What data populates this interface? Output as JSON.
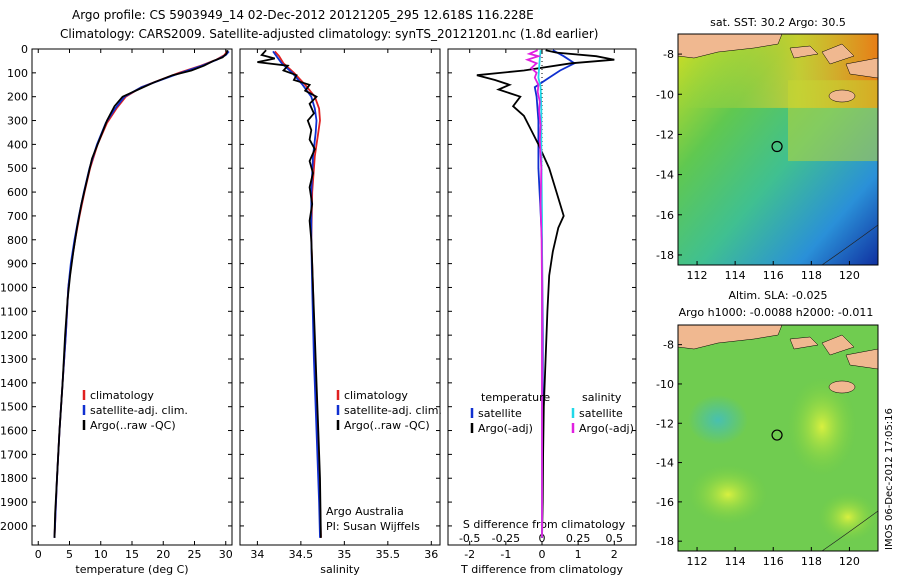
{
  "header": {
    "line1": "Argo profile: CS 5903949_14 02-Dec-2012 20121205_295 12.618S 116.228E",
    "line2": "Climatology: CARS2009. Satellite-adjusted climatology: synTS_20121201.nc (1.8d earlier)"
  },
  "side_label": "IMOS 06-Dec-2012 17:05:16",
  "colors": {
    "clim": "#e02020",
    "sat": "#1030d0",
    "argo": "#000000",
    "sat_s": "#20d8e8",
    "argo_s": "#e020e0"
  },
  "chart_data": [
    {
      "type": "line",
      "name": "temperature-profile",
      "xlabel": "temperature (deg C)",
      "ylabel": "",
      "xlim": [
        -1,
        31
      ],
      "ylim": [
        2080,
        0
      ],
      "xticks": [
        0,
        5,
        10,
        15,
        20,
        25,
        30
      ],
      "yticks": [
        0,
        100,
        200,
        300,
        400,
        500,
        600,
        700,
        800,
        900,
        1000,
        1100,
        1200,
        1300,
        1400,
        1500,
        1600,
        1700,
        1800,
        1900,
        2000
      ],
      "legend": {
        "position": "lower-left",
        "items": [
          "climatology",
          "satellite-adj. clim.",
          "Argo(..raw -QC)"
        ]
      },
      "series": [
        {
          "name": "climatology",
          "color": "clim",
          "points": [
            [
              30.2,
              10
            ],
            [
              29.8,
              25
            ],
            [
              28.5,
              45
            ],
            [
              26,
              70
            ],
            [
              22.5,
              100
            ],
            [
              19.5,
              130
            ],
            [
              16.5,
              160
            ],
            [
              14,
              200
            ],
            [
              12.5,
              250
            ],
            [
              11,
              310
            ],
            [
              9.5,
              400
            ],
            [
              8.3,
              500
            ],
            [
              7.4,
              600
            ],
            [
              6.6,
              700
            ],
            [
              5.9,
              800
            ],
            [
              5.3,
              900
            ],
            [
              4.8,
              1000
            ],
            [
              4.4,
              1200
            ],
            [
              3.9,
              1400
            ],
            [
              3.4,
              1600
            ],
            [
              3.0,
              1800
            ],
            [
              2.6,
              2050
            ]
          ]
        },
        {
          "name": "satellite-adj. clim.",
          "color": "sat",
          "points": [
            [
              30.5,
              10
            ],
            [
              30,
              25
            ],
            [
              28.6,
              45
            ],
            [
              26.2,
              70
            ],
            [
              22.8,
              100
            ],
            [
              19.6,
              130
            ],
            [
              16.5,
              160
            ],
            [
              13.8,
              200
            ],
            [
              12.3,
              250
            ],
            [
              10.8,
              310
            ],
            [
              9.4,
              400
            ],
            [
              8.2,
              500
            ],
            [
              7.3,
              600
            ],
            [
              6.5,
              700
            ],
            [
              5.8,
              800
            ],
            [
              5.2,
              900
            ],
            [
              4.8,
              1000
            ],
            [
              4.4,
              1200
            ],
            [
              3.9,
              1400
            ],
            [
              3.4,
              1600
            ],
            [
              3.0,
              1800
            ],
            [
              2.6,
              2050
            ]
          ]
        },
        {
          "name": "Argo(..raw -QC)",
          "color": "argo",
          "points": [
            [
              30.3,
              5
            ],
            [
              30.1,
              20
            ],
            [
              29.5,
              35
            ],
            [
              28,
              50
            ],
            [
              26.5,
              70
            ],
            [
              24.5,
              90
            ],
            [
              21.5,
              110
            ],
            [
              18.5,
              140
            ],
            [
              16,
              170
            ],
            [
              13.5,
              200
            ],
            [
              12.2,
              240
            ],
            [
              11,
              300
            ],
            [
              9.8,
              380
            ],
            [
              8.6,
              460
            ],
            [
              7.7,
              560
            ],
            [
              6.9,
              650
            ],
            [
              6.2,
              750
            ],
            [
              5.6,
              850
            ],
            [
              5.1,
              950
            ],
            [
              4.7,
              1050
            ],
            [
              4.3,
              1200
            ],
            [
              3.9,
              1400
            ],
            [
              3.4,
              1600
            ],
            [
              3.0,
              1800
            ],
            [
              2.7,
              1950
            ],
            [
              2.6,
              2050
            ]
          ]
        }
      ]
    },
    {
      "type": "line",
      "name": "salinity-profile",
      "xlabel": "salinity",
      "xlim": [
        33.8,
        36.1
      ],
      "ylim": [
        2080,
        0
      ],
      "xticks": [
        34,
        34.5,
        35,
        35.5,
        36
      ],
      "legend": {
        "position": "lower-right",
        "items": [
          "climatology",
          "satellite-adj. clim.",
          "Argo(..raw -QC)"
        ]
      },
      "annotation": [
        "Argo Australia",
        "PI: Susan Wijffels"
      ],
      "series": [
        {
          "name": "climatology",
          "color": "clim",
          "points": [
            [
              34.2,
              10
            ],
            [
              34.25,
              30
            ],
            [
              34.3,
              60
            ],
            [
              34.42,
              100
            ],
            [
              34.55,
              150
            ],
            [
              34.66,
              200
            ],
            [
              34.71,
              250
            ],
            [
              34.72,
              300
            ],
            [
              34.7,
              350
            ],
            [
              34.66,
              450
            ],
            [
              34.63,
              600
            ],
            [
              34.62,
              800
            ],
            [
              34.64,
              1000
            ],
            [
              34.66,
              1300
            ],
            [
              34.69,
              1600
            ],
            [
              34.72,
              1900
            ],
            [
              34.73,
              2050
            ]
          ]
        },
        {
          "name": "satellite-adj. clim.",
          "color": "sat",
          "points": [
            [
              34.18,
              10
            ],
            [
              34.22,
              30
            ],
            [
              34.28,
              60
            ],
            [
              34.4,
              100
            ],
            [
              34.52,
              150
            ],
            [
              34.62,
              200
            ],
            [
              34.66,
              250
            ],
            [
              34.68,
              300
            ],
            [
              34.67,
              350
            ],
            [
              34.64,
              450
            ],
            [
              34.62,
              600
            ],
            [
              34.62,
              800
            ],
            [
              34.63,
              1000
            ],
            [
              34.65,
              1300
            ],
            [
              34.68,
              1600
            ],
            [
              34.71,
              1900
            ],
            [
              34.72,
              2050
            ]
          ]
        },
        {
          "name": "Argo(..raw -QC)",
          "color": "argo",
          "points": [
            [
              34.1,
              5
            ],
            [
              34.05,
              25
            ],
            [
              34.2,
              40
            ],
            [
              34.0,
              55
            ],
            [
              34.35,
              70
            ],
            [
              34.3,
              90
            ],
            [
              34.45,
              110
            ],
            [
              34.42,
              130
            ],
            [
              34.6,
              150
            ],
            [
              34.55,
              175
            ],
            [
              34.68,
              200
            ],
            [
              34.6,
              230
            ],
            [
              34.65,
              270
            ],
            [
              34.58,
              300
            ],
            [
              34.62,
              340
            ],
            [
              34.6,
              380
            ],
            [
              34.66,
              420
            ],
            [
              34.6,
              470
            ],
            [
              34.64,
              520
            ],
            [
              34.6,
              580
            ],
            [
              34.63,
              650
            ],
            [
              34.6,
              720
            ],
            [
              34.62,
              800
            ],
            [
              34.63,
              900
            ],
            [
              34.64,
              1000
            ],
            [
              34.66,
              1200
            ],
            [
              34.68,
              1400
            ],
            [
              34.7,
              1600
            ],
            [
              34.72,
              1800
            ],
            [
              34.73,
              2050
            ]
          ]
        }
      ]
    },
    {
      "type": "line",
      "name": "difference-profile",
      "xlabel": "T difference from climatology",
      "xlabel2": "S difference from climatology",
      "xlim": [
        -2.6,
        2.6
      ],
      "ylim": [
        2080,
        0
      ],
      "xticks": [
        -2,
        -1,
        0,
        1,
        2
      ],
      "xticks2": [
        -0.5,
        -0.25,
        0,
        0.25,
        0.5
      ],
      "xticks2_scale": 4,
      "legend": {
        "position": "lower",
        "left_title": "temperature",
        "right_title": "salinity",
        "items": [
          "satellite",
          "Argo(-adj)",
          "satellite",
          "Argo(-adj)"
        ]
      },
      "series": [
        {
          "name": "T satellite",
          "color": "sat",
          "points": [
            [
              0.3,
              5
            ],
            [
              0.6,
              30
            ],
            [
              0.9,
              60
            ],
            [
              0.5,
              90
            ],
            [
              0.2,
              120
            ],
            [
              -0.2,
              160
            ],
            [
              -0.15,
              200
            ],
            [
              -0.1,
              300
            ],
            [
              -0.1,
              500
            ],
            [
              0.0,
              800
            ],
            [
              0.02,
              1200
            ],
            [
              0.02,
              1600
            ],
            [
              0.0,
              2050
            ]
          ]
        },
        {
          "name": "T Argo(-adj)",
          "color": "argo",
          "points": [
            [
              0.1,
              5
            ],
            [
              0.4,
              15
            ],
            [
              1.5,
              30
            ],
            [
              2.0,
              45
            ],
            [
              0.8,
              60
            ],
            [
              -0.5,
              90
            ],
            [
              -1.8,
              110
            ],
            [
              -1.3,
              130
            ],
            [
              -0.9,
              150
            ],
            [
              -1.2,
              170
            ],
            [
              -0.6,
              200
            ],
            [
              -0.8,
              240
            ],
            [
              -0.5,
              280
            ],
            [
              -0.3,
              340
            ],
            [
              -0.1,
              400
            ],
            [
              0.2,
              500
            ],
            [
              0.4,
              600
            ],
            [
              0.5,
              650
            ],
            [
              0.6,
              700
            ],
            [
              0.45,
              750
            ],
            [
              0.3,
              850
            ],
            [
              0.2,
              950
            ],
            [
              0.15,
              1100
            ],
            [
              0.1,
              1300
            ],
            [
              0.05,
              1500
            ],
            [
              0.03,
              1700
            ],
            [
              0.02,
              1900
            ],
            [
              0.0,
              2050
            ]
          ]
        },
        {
          "name": "S satellite",
          "color": "sat_s",
          "points": [
            [
              -0.04,
              5
            ],
            [
              -0.06,
              40
            ],
            [
              -0.08,
              80
            ],
            [
              -0.1,
              120
            ],
            [
              -0.04,
              160
            ],
            [
              -0.02,
              250
            ],
            [
              -0.02,
              400
            ],
            [
              0.0,
              700
            ],
            [
              0.0,
              1000
            ],
            [
              0.0,
              1400
            ],
            [
              0.0,
              1800
            ],
            [
              0.0,
              2050
            ]
          ]
        },
        {
          "name": "S Argo(-adj)",
          "color": "argo_s",
          "points": [
            [
              -0.12,
              5
            ],
            [
              -0.35,
              20
            ],
            [
              -0.1,
              30
            ],
            [
              -0.4,
              45
            ],
            [
              -0.15,
              60
            ],
            [
              -0.3,
              80
            ],
            [
              -0.15,
              100
            ],
            [
              -0.2,
              120
            ],
            [
              -0.1,
              150
            ],
            [
              -0.12,
              180
            ],
            [
              -0.06,
              220
            ],
            [
              -0.08,
              260
            ],
            [
              -0.04,
              320
            ],
            [
              -0.06,
              380
            ],
            [
              -0.02,
              500
            ],
            [
              -0.04,
              650
            ],
            [
              -0.01,
              800
            ],
            [
              0.0,
              1000
            ],
            [
              0.0,
              1400
            ],
            [
              0.0,
              1800
            ],
            [
              0.0,
              2050
            ]
          ]
        }
      ]
    },
    {
      "type": "heatmap",
      "name": "sst-map",
      "title": "sat. SST: 30.2  Argo: 30.5",
      "xlim": [
        111,
        121.5
      ],
      "ylim": [
        -18.5,
        -7
      ],
      "xticks": [
        112,
        114,
        116,
        118,
        120
      ],
      "yticks": [
        -8,
        -10,
        -12,
        -14,
        -16,
        -18
      ],
      "marker": [
        116.2,
        -12.6
      ]
    },
    {
      "type": "heatmap",
      "name": "sla-map",
      "title": "Altim. SLA: -0.025",
      "subtitle": "Argo h1000: -0.0088 h2000: -0.011",
      "xlim": [
        111,
        121.5
      ],
      "ylim": [
        -18.5,
        -7
      ],
      "xticks": [
        112,
        114,
        116,
        118,
        120
      ],
      "yticks": [
        -8,
        -10,
        -12,
        -14,
        -16,
        -18
      ],
      "marker": [
        116.2,
        -12.6
      ]
    }
  ]
}
